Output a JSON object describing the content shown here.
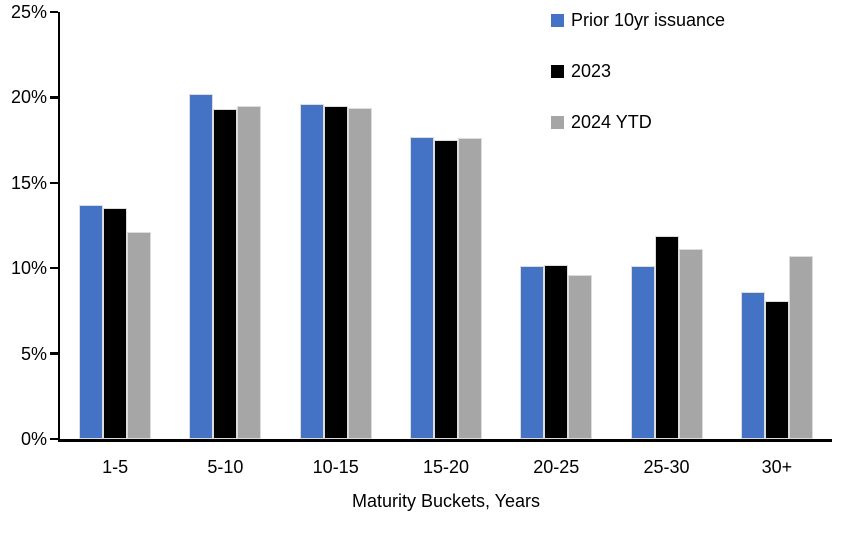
{
  "chart_data": {
    "type": "bar",
    "title": "",
    "xlabel": "Maturity Buckets, Years",
    "ylabel": "",
    "categories": [
      "1-5",
      "5-10",
      "10-15",
      "15-20",
      "20-25",
      "25-30",
      "30+"
    ],
    "series": [
      {
        "name": "Prior 10yr issuance",
        "color": "#4472C4",
        "values": [
          13.7,
          20.2,
          19.6,
          17.7,
          10.1,
          10.1,
          8.6
        ]
      },
      {
        "name": "2023",
        "color": "#000000",
        "values": [
          13.5,
          19.3,
          19.5,
          17.5,
          10.2,
          11.9,
          8.1
        ]
      },
      {
        "name": "2024 YTD",
        "color": "#A6A6A6",
        "values": [
          12.1,
          19.5,
          19.4,
          17.6,
          9.6,
          11.1,
          10.7
        ]
      }
    ],
    "ylim": [
      0,
      25
    ],
    "ytick_step": 5,
    "ytick_labels": [
      "0%",
      "5%",
      "10%",
      "15%",
      "20%",
      "25%"
    ],
    "grid": false,
    "legend_position": "top-right",
    "axis_color": "#000000",
    "background_color": "#FFFFFF"
  }
}
